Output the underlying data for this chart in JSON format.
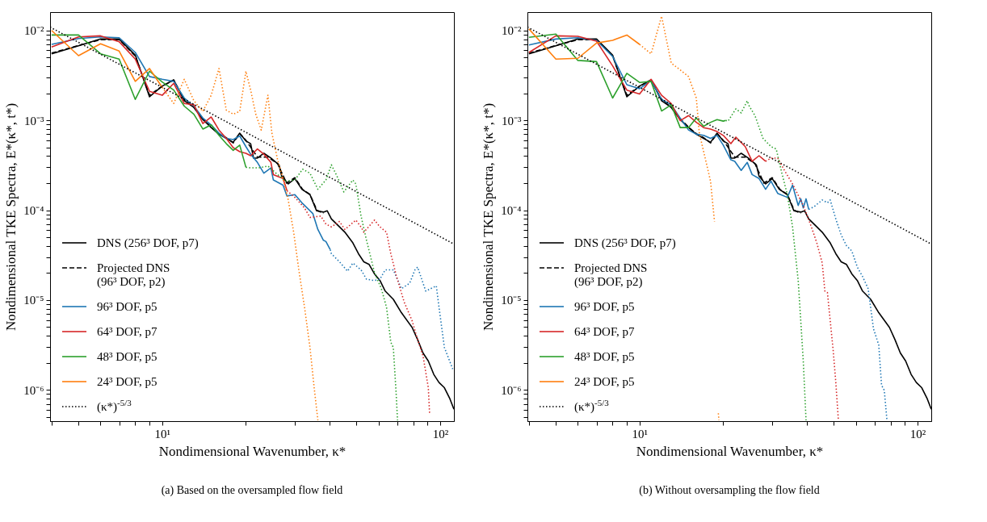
{
  "chart_data": [
    {
      "type": "line",
      "xlabel": "Nondimensional Wavenumber, κ*",
      "ylabel": "Nondimensional TKE Spectra, E*(κ*, t*)",
      "annotations": [
        "(a) Based on the oversampled flow field"
      ],
      "log": "xy",
      "legend": "bottom left",
      "xlim": [
        3.95,
        112
      ],
      "ylim": [
        4.5e-07,
        0.016
      ],
      "xticks": [
        {
          "value": 4,
          "label": null
        },
        {
          "value": 5,
          "label": null
        },
        {
          "value": 6,
          "label": null
        },
        {
          "value": 7,
          "label": null
        },
        {
          "value": 8,
          "label": null
        },
        {
          "value": 9,
          "label": null
        },
        {
          "value": 10,
          "label": "10¹"
        },
        {
          "value": 20,
          "label": null
        },
        {
          "value": 30,
          "label": null
        },
        {
          "value": 40,
          "label": null
        },
        {
          "value": 50,
          "label": null
        },
        {
          "value": 60,
          "label": null
        },
        {
          "value": 70,
          "label": null
        },
        {
          "value": 80,
          "label": null
        },
        {
          "value": 90,
          "label": null
        },
        {
          "value": 100,
          "label": "10²"
        }
      ],
      "yticks": [
        {
          "value": 5e-07,
          "label": null
        },
        {
          "value": 6e-07,
          "label": null
        },
        {
          "value": 7e-07,
          "label": null
        },
        {
          "value": 8e-07,
          "label": null
        },
        {
          "value": 9e-07,
          "label": null
        },
        {
          "value": 1e-06,
          "label": "10⁻⁶"
        },
        {
          "value": 2e-06,
          "label": null
        },
        {
          "value": 3e-06,
          "label": null
        },
        {
          "value": 4e-06,
          "label": null
        },
        {
          "value": 5e-06,
          "label": null
        },
        {
          "value": 6e-06,
          "label": null
        },
        {
          "value": 7e-06,
          "label": null
        },
        {
          "value": 8e-06,
          "label": null
        },
        {
          "value": 9e-06,
          "label": null
        },
        {
          "value": 1e-05,
          "label": "10⁻⁵"
        },
        {
          "value": 2e-05,
          "label": null
        },
        {
          "value": 3e-05,
          "label": null
        },
        {
          "value": 4e-05,
          "label": null
        },
        {
          "value": 5e-05,
          "label": null
        },
        {
          "value": 6e-05,
          "label": null
        },
        {
          "value": 7e-05,
          "label": null
        },
        {
          "value": 8e-05,
          "label": null
        },
        {
          "value": 9e-05,
          "label": null
        },
        {
          "value": 0.0001,
          "label": "10⁻⁴"
        },
        {
          "value": 0.0002,
          "label": null
        },
        {
          "value": 0.0003,
          "label": null
        },
        {
          "value": 0.0004,
          "label": null
        },
        {
          "value": 0.0005,
          "label": null
        },
        {
          "value": 0.0006,
          "label": null
        },
        {
          "value": 0.0007,
          "label": null
        },
        {
          "value": 0.0008,
          "label": null
        },
        {
          "value": 0.0009,
          "label": null
        },
        {
          "value": 0.001,
          "label": "10⁻³"
        },
        {
          "value": 0.002,
          "label": null
        },
        {
          "value": 0.003,
          "label": null
        },
        {
          "value": 0.004,
          "label": null
        },
        {
          "value": 0.005,
          "label": null
        },
        {
          "value": 0.006,
          "label": null
        },
        {
          "value": 0.007,
          "label": null
        },
        {
          "value": 0.008,
          "label": null
        },
        {
          "value": 0.009,
          "label": null
        },
        {
          "value": 0.01,
          "label": "10⁻²"
        }
      ],
      "series": [
        {
          "name": "DNS (256³ DOF, p7)",
          "color": "#000000",
          "line_style": "solid",
          "x": [
            4,
            5,
            6,
            7,
            8,
            9,
            10,
            11,
            12,
            13,
            14,
            15,
            16,
            17,
            18,
            19,
            20,
            20.8,
            21.3,
            22,
            23.2,
            24.6,
            26.3,
            26.9,
            28.4,
            30,
            31.8,
            34,
            35.9,
            38,
            39.2,
            40.6,
            43.4,
            45.4,
            48.5,
            50.8,
            53.1,
            55.5,
            58,
            60.7,
            63.4,
            67.8,
            72.5,
            79.2,
            82.9,
            86.7,
            90.6,
            94.8,
            99,
            103.5,
            108.3,
            112
          ],
          "values": [
            0.0055,
            0.00676,
            0.00803,
            0.00803,
            0.00531,
            0.00183,
            0.00241,
            0.00282,
            0.00165,
            0.00139,
            0.00102,
            0.00083,
            0.0007,
            0.00063,
            0.00057,
            0.00072,
            0.00059,
            0.00055,
            0.00038,
            0.00038,
            0.00043,
            0.00038,
            0.00032,
            0.00024,
            0.000196,
            0.000225,
            0.000171,
            0.000149,
            9.86e-05,
            9.53e-05,
            9.86e-05,
            8e-05,
            6.53e-05,
            5.69e-05,
            4.33e-05,
            3.28e-05,
            2.67e-05,
            2.49e-05,
            1.96e-05,
            1.65e-05,
            1.26e-05,
            1.02e-05,
            7.24e-06,
            4.97e-06,
            3.64e-06,
            2.58e-06,
            2.1e-06,
            1.49e-06,
            1.21e-06,
            1.06e-06,
            8e-07,
            6.1e-07
          ]
        },
        {
          "name": "Projected DNS (96³ DOF, p2)",
          "color": "#000000",
          "line_style": "dashed",
          "x": [
            4,
            5,
            6,
            7,
            8,
            9,
            10,
            11,
            12,
            13,
            14,
            15,
            16,
            17,
            18,
            19,
            20,
            22,
            24,
            26,
            28,
            30,
            32,
            34,
            36,
            38
          ],
          "values": [
            0.0056,
            0.0068,
            0.0079,
            0.0079,
            0.0052,
            0.0019,
            0.0024,
            0.0028,
            0.0017,
            0.0014,
            0.00104,
            0.00084,
            0.00071,
            0.00064,
            0.00056,
            0.00071,
            0.0006,
            0.00039,
            0.00039,
            0.00033,
            0.0002,
            0.00023,
            0.00017,
            0.00015,
            0.0001,
            9.2e-05
          ]
        },
        {
          "name": "96³ DOF, p5",
          "color": "#1f77b4",
          "line_style": "solid",
          "x": [
            4,
            5,
            6,
            7,
            8,
            9,
            10,
            11,
            12,
            13,
            14,
            15,
            16,
            17,
            18,
            19,
            20,
            20.8,
            22,
            23.2,
            24.6,
            25.1,
            27.2,
            28.1,
            30,
            31.8,
            34.8,
            36.3,
            38,
            38.8,
            40.2
          ],
          "values": [
            0.007,
            0.00813,
            0.00848,
            0.0083,
            0.00569,
            0.00307,
            0.00286,
            0.00271,
            0.00177,
            0.00144,
            0.00106,
            0.00089,
            0.00072,
            0.00063,
            0.00061,
            0.00067,
            0.00051,
            0.00042,
            0.00034,
            0.000258,
            0.000296,
            0.000217,
            0.00019,
            0.000144,
            0.000149,
            0.000121,
            9.2e-05,
            6.1e-05,
            4.63e-05,
            4.48e-05,
            3.64e-05
          ]
        },
        {
          "name": "64³ DOF, p7",
          "color": "#d62728",
          "line_style": "solid",
          "x": [
            4,
            5,
            6,
            7,
            8,
            9,
            10,
            11,
            12,
            13,
            14,
            15,
            16,
            17,
            18,
            19,
            20,
            20.8,
            22,
            23.2,
            24.6,
            25.1,
            27.2,
            28.1
          ],
          "values": [
            0.00653,
            0.00848,
            0.00871,
            0.0075,
            0.0048,
            0.0021,
            0.0019,
            0.00258,
            0.00154,
            0.00149,
            0.00092,
            0.00109,
            0.00078,
            0.00063,
            0.000497,
            0.000448,
            0.00043,
            0.000404,
            0.00048,
            0.00042,
            0.00034,
            0.000249,
            0.000225,
            0.000165
          ]
        },
        {
          "name": "48³ DOF, p5",
          "color": "#2ca02c",
          "line_style": "solid",
          "x": [
            4,
            5,
            6,
            7,
            8,
            9,
            10,
            11,
            12,
            13,
            14,
            15,
            16,
            17,
            18,
            19,
            20
          ],
          "values": [
            0.0089,
            0.0089,
            0.0055,
            0.0048,
            0.00171,
            0.00352,
            0.00267,
            0.00217,
            0.00144,
            0.00117,
            0.0008,
            0.00089,
            0.00068,
            0.00055,
            0.000463,
            0.00053,
            0.0003
          ]
        },
        {
          "name": "24³ DOF, p5",
          "color": "#ff7f0e",
          "line_style": "solid",
          "x": [
            4,
            5,
            6,
            7,
            8,
            9,
            10
          ],
          "values": [
            0.01,
            0.00524,
            0.0071,
            0.00589,
            0.00271,
            0.00377,
            0.00233
          ]
        },
        {
          "name": "(κ*)$^{-5/3}$",
          "color": "#000000",
          "line_style": "dotted",
          "x": [
            3.95,
            112
          ],
          "values": [
            0.0109,
            4.2e-05
          ]
        },
        {
          "color": "#1f77b4",
          "line_style": "dotted",
          "x": [
            40.2,
            40.6,
            43.4,
            46.4,
            48.5,
            51.9,
            54.3,
            58,
            60.7,
            63.4,
            67.8,
            72.5,
            77.6,
            81.1,
            82.9,
            88.7,
            96.8,
            99,
            103.5,
            110.9
          ],
          "values": [
            3.64e-05,
            3.28e-05,
            2.67e-05,
            2.1e-05,
            2.58e-05,
            2.17e-05,
            1.71e-05,
            1.65e-05,
            1.71e-05,
            2.17e-05,
            2.17e-05,
            1.34e-05,
            1.54e-05,
            2.17e-05,
            2.33e-05,
            1.26e-05,
            1.44e-05,
            8.3e-06,
            2.97e-06,
            1.71e-06
          ]
        },
        {
          "color": "#d62728",
          "line_style": "dotted",
          "x": [
            28.1,
            30,
            32.5,
            34,
            37.2,
            38.8,
            40.6,
            43.4,
            45.4,
            49.7,
            51.9,
            53.1,
            58,
            60.7,
            64.1,
            66.4,
            69.4,
            74.2,
            79.2,
            82.9,
            86.7,
            90.6,
            91.6
          ],
          "values": [
            0.000165,
            0.000139,
            0.000106,
            8.3e-05,
            8.6e-05,
            7e-05,
            6.53e-05,
            7.5e-05,
            6.1e-05,
            7.76e-05,
            6.5e-05,
            5.69e-05,
            7.76e-05,
            6.53e-05,
            5.69e-05,
            3.28e-05,
            1.9e-05,
            9.5e-06,
            5.9e-06,
            3.64e-06,
            2.4e-06,
            1.06e-06,
            5.3e-07
          ]
        },
        {
          "color": "#2ca02c",
          "line_style": "dotted",
          "x": [
            20,
            20.8,
            22.2,
            24,
            26,
            27.8,
            30,
            32,
            34,
            36.3,
            38.8,
            40.6,
            42.5,
            45,
            48.5,
            49.7,
            51.9,
            54.3,
            58,
            61.4,
            64.1,
            66.4,
            67.8,
            69.4,
            70.2
          ],
          "values": [
            0.0003,
            0.000296,
            0.000296,
            0.00031,
            0.000249,
            0.00021,
            0.000217,
            0.000286,
            0.000258,
            0.000171,
            0.000217,
            0.00032,
            0.00024,
            0.00016,
            0.000217,
            0.000196,
            8.6e-05,
            4.63e-05,
            2.03e-05,
            1.34e-05,
            8.3e-06,
            3.4e-06,
            2.97e-06,
            9.2e-07,
            4.6e-07
          ]
        },
        {
          "color": "#ff7f0e",
          "line_style": "dotted",
          "x": [
            10,
            11,
            12,
            13,
            14,
            15,
            16,
            17,
            18,
            19,
            20,
            20.8,
            21.7,
            22.7,
            24,
            24.8,
            26,
            27.2,
            28.4,
            29.7,
            31,
            32.5,
            34,
            35.2,
            36.3
          ],
          "values": [
            0.00233,
            0.00154,
            0.00286,
            0.00165,
            0.00126,
            0.0019,
            0.00377,
            0.0013,
            0.00117,
            0.00126,
            0.00352,
            0.00217,
            0.00117,
            0.00078,
            0.0019,
            0.00072,
            0.000364,
            0.000225,
            0.00013,
            5.69e-05,
            2.17e-05,
            8.3e-06,
            2.97e-06,
            1.06e-06,
            4.6e-07
          ]
        }
      ]
    },
    {
      "type": "line",
      "xlabel": "Nondimensional Wavenumber, κ*",
      "ylabel": "Nondimensional TKE Spectra, E*(κ*, t*)",
      "annotations": [
        "(b) Without oversampling the flow field"
      ],
      "log": "xy",
      "legend": "bottom left",
      "xlim": [
        3.95,
        112
      ],
      "ylim": [
        4.5e-07,
        0.016
      ],
      "xticks": [
        {
          "value": 4,
          "label": null
        },
        {
          "value": 5,
          "label": null
        },
        {
          "value": 6,
          "label": null
        },
        {
          "value": 7,
          "label": null
        },
        {
          "value": 8,
          "label": null
        },
        {
          "value": 9,
          "label": null
        },
        {
          "value": 10,
          "label": "10¹"
        },
        {
          "value": 20,
          "label": null
        },
        {
          "value": 30,
          "label": null
        },
        {
          "value": 40,
          "label": null
        },
        {
          "value": 50,
          "label": null
        },
        {
          "value": 60,
          "label": null
        },
        {
          "value": 70,
          "label": null
        },
        {
          "value": 80,
          "label": null
        },
        {
          "value": 90,
          "label": null
        },
        {
          "value": 100,
          "label": "10²"
        }
      ],
      "yticks": [
        {
          "value": 5e-07,
          "label": null
        },
        {
          "value": 6e-07,
          "label": null
        },
        {
          "value": 7e-07,
          "label": null
        },
        {
          "value": 8e-07,
          "label": null
        },
        {
          "value": 9e-07,
          "label": null
        },
        {
          "value": 1e-06,
          "label": "10⁻⁶"
        },
        {
          "value": 2e-06,
          "label": null
        },
        {
          "value": 3e-06,
          "label": null
        },
        {
          "value": 4e-06,
          "label": null
        },
        {
          "value": 5e-06,
          "label": null
        },
        {
          "value": 6e-06,
          "label": null
        },
        {
          "value": 7e-06,
          "label": null
        },
        {
          "value": 8e-06,
          "label": null
        },
        {
          "value": 9e-06,
          "label": null
        },
        {
          "value": 1e-05,
          "label": "10⁻⁵"
        },
        {
          "value": 2e-05,
          "label": null
        },
        {
          "value": 3e-05,
          "label": null
        },
        {
          "value": 4e-05,
          "label": null
        },
        {
          "value": 5e-05,
          "label": null
        },
        {
          "value": 6e-05,
          "label": null
        },
        {
          "value": 7e-05,
          "label": null
        },
        {
          "value": 8e-05,
          "label": null
        },
        {
          "value": 9e-05,
          "label": null
        },
        {
          "value": 0.0001,
          "label": "10⁻⁴"
        },
        {
          "value": 0.0002,
          "label": null
        },
        {
          "value": 0.0003,
          "label": null
        },
        {
          "value": 0.0004,
          "label": null
        },
        {
          "value": 0.0005,
          "label": null
        },
        {
          "value": 0.0006,
          "label": null
        },
        {
          "value": 0.0007,
          "label": null
        },
        {
          "value": 0.0008,
          "label": null
        },
        {
          "value": 0.0009,
          "label": null
        },
        {
          "value": 0.001,
          "label": "10⁻³"
        },
        {
          "value": 0.002,
          "label": null
        },
        {
          "value": 0.003,
          "label": null
        },
        {
          "value": 0.004,
          "label": null
        },
        {
          "value": 0.005,
          "label": null
        },
        {
          "value": 0.006,
          "label": null
        },
        {
          "value": 0.007,
          "label": null
        },
        {
          "value": 0.008,
          "label": null
        },
        {
          "value": 0.009,
          "label": null
        },
        {
          "value": 0.01,
          "label": "10⁻²"
        }
      ],
      "series": [
        {
          "name": "DNS (256³ DOF, p7)",
          "color": "#000000",
          "line_style": "solid",
          "x": [
            4,
            5,
            6,
            7,
            8,
            9,
            10,
            11,
            12,
            13,
            14,
            15,
            16,
            17,
            18,
            19,
            20,
            20.8,
            21.3,
            22,
            23.2,
            24.6,
            26.3,
            26.9,
            28.4,
            30,
            31.8,
            34,
            35.9,
            38,
            39.2,
            40.6,
            43.4,
            45.4,
            48.5,
            50.8,
            53.1,
            55.5,
            58,
            60.7,
            63.4,
            67.8,
            72.5,
            79.2,
            82.9,
            86.7,
            90.6,
            94.8,
            99,
            103.5,
            108.3,
            112
          ],
          "values": [
            0.0055,
            0.00676,
            0.00803,
            0.00803,
            0.00531,
            0.00183,
            0.00241,
            0.00282,
            0.00165,
            0.00139,
            0.00102,
            0.00083,
            0.0007,
            0.00063,
            0.00057,
            0.00072,
            0.00059,
            0.00055,
            0.00038,
            0.00038,
            0.00043,
            0.00038,
            0.00032,
            0.00024,
            0.000196,
            0.000225,
            0.000171,
            0.000149,
            9.86e-05,
            9.53e-05,
            9.86e-05,
            8e-05,
            6.53e-05,
            5.69e-05,
            4.33e-05,
            3.28e-05,
            2.67e-05,
            2.49e-05,
            1.96e-05,
            1.65e-05,
            1.26e-05,
            1.02e-05,
            7.24e-06,
            4.97e-06,
            3.64e-06,
            2.58e-06,
            2.1e-06,
            1.49e-06,
            1.21e-06,
            1.06e-06,
            8e-07,
            6.1e-07
          ]
        },
        {
          "name": "Projected DNS (96³ DOF, p2)",
          "color": "#000000",
          "line_style": "dashed",
          "x": [
            4,
            5,
            6,
            7,
            8,
            9,
            10,
            11,
            12,
            13,
            14,
            15,
            16,
            17,
            18,
            19,
            20,
            22,
            24,
            26,
            28,
            30,
            32,
            34,
            36,
            38
          ],
          "values": [
            0.0056,
            0.0068,
            0.0079,
            0.0079,
            0.0052,
            0.0019,
            0.0024,
            0.0028,
            0.0017,
            0.0014,
            0.00104,
            0.00084,
            0.00071,
            0.00064,
            0.00056,
            0.00071,
            0.0006,
            0.00039,
            0.00039,
            0.00033,
            0.0002,
            0.00023,
            0.00017,
            0.00015,
            0.0001,
            9.2e-05
          ]
        },
        {
          "name": "96³ DOF, p5",
          "color": "#1f77b4",
          "line_style": "solid",
          "x": [
            4,
            5,
            6,
            7,
            8,
            9,
            10,
            11,
            12,
            13,
            14,
            15,
            16,
            17,
            18,
            19,
            20,
            21.3,
            22,
            23.2,
            24.4,
            25.4,
            26.9,
            28.4,
            29.7,
            31.4,
            34,
            35.5,
            37.2,
            38,
            38.8,
            39.7,
            40.6
          ],
          "values": [
            0.0069,
            0.00803,
            0.0083,
            0.00776,
            0.00513,
            0.00249,
            0.00225,
            0.00277,
            0.00171,
            0.00149,
            0.00106,
            0.00078,
            0.0007,
            0.00068,
            0.00063,
            0.00068,
            0.00053,
            0.000364,
            0.00035,
            0.000277,
            0.00034,
            0.000249,
            0.000225,
            0.000171,
            0.00021,
            0.000154,
            0.000139,
            0.00019,
            0.000113,
            0.000134,
            0.000106,
            0.000134,
            0.000102
          ]
        },
        {
          "name": "64³ DOF, p7",
          "color": "#d62728",
          "line_style": "solid",
          "x": [
            4,
            5,
            6,
            7,
            8,
            9,
            10,
            11,
            12,
            13,
            14,
            15,
            16,
            17,
            18,
            19,
            20,
            21.3,
            22.2,
            24,
            25.4,
            26.9,
            28.4
          ],
          "values": [
            0.00569,
            0.00871,
            0.0086,
            0.0076,
            0.00404,
            0.00217,
            0.00196,
            0.00286,
            0.0019,
            0.00154,
            0.00099,
            0.00113,
            0.00095,
            0.00083,
            0.0008,
            0.00075,
            0.00068,
            0.00055,
            0.00065,
            0.00051,
            0.00035,
            0.000404,
            0.00035
          ]
        },
        {
          "name": "48³ DOF, p5",
          "color": "#2ca02c",
          "line_style": "solid",
          "x": [
            4,
            5,
            6,
            7,
            8,
            9,
            10,
            11,
            12,
            13,
            14,
            15,
            16,
            17,
            18,
            19,
            20,
            20.4
          ],
          "values": [
            0.0084,
            0.0091,
            0.00464,
            0.0045,
            0.00177,
            0.00333,
            0.00264,
            0.00271,
            0.00127,
            0.00149,
            0.00083,
            0.00083,
            0.00106,
            0.00086,
            0.00095,
            0.00102,
            0.00098,
            0.001
          ]
        },
        {
          "name": "24³ DOF, p5",
          "color": "#ff7f0e",
          "line_style": "solid",
          "x": [
            4,
            5,
            6,
            7,
            8,
            9,
            10
          ],
          "values": [
            0.0104,
            0.0048,
            0.0049,
            0.00724,
            0.00776,
            0.0089,
            0.007
          ]
        },
        {
          "name": "(κ*)$^{-5/3}$",
          "color": "#000000",
          "line_style": "dotted",
          "x": [
            3.95,
            112
          ],
          "values": [
            0.0109,
            4.2e-05
          ]
        },
        {
          "color": "#1f77b4",
          "line_style": "dotted",
          "x": [
            40.6,
            42.5,
            45.4,
            47.4,
            48.5,
            50.8,
            53.1,
            55.5,
            58,
            60.7,
            63.4,
            66.4,
            69.4,
            72.5,
            74.2,
            75.9,
            77.6
          ],
          "values": [
            0.000102,
            0.00011,
            0.00013,
            0.000121,
            0.00013,
            8e-05,
            5.31e-05,
            4.03e-05,
            3.52e-05,
            2.33e-05,
            1.83e-05,
            1.34e-05,
            4.8e-06,
            3.17e-06,
            1.13e-06,
            9.9e-07,
            4.6e-07
          ]
        },
        {
          "color": "#d62728",
          "line_style": "dotted",
          "x": [
            28.4,
            29.7,
            31.4,
            33.2,
            35.5,
            38.8,
            41.5,
            43.4,
            45.4,
            46.4,
            47.4,
            48.5,
            49.7,
            50.8,
            51.9
          ],
          "values": [
            0.00035,
            0.00038,
            0.00038,
            0.000277,
            0.000196,
            0.000113,
            6.53e-05,
            4.33e-05,
            2.58e-05,
            1.26e-05,
            1.21e-05,
            5.9e-06,
            2.77e-06,
            1.21e-06,
            4.6e-07
          ]
        },
        {
          "color": "#2ca02c",
          "line_style": "dotted",
          "x": [
            20.4,
            20.8,
            22.2,
            23.2,
            24.4,
            24.8,
            26,
            27.8,
            29.7,
            31,
            32.5,
            34,
            35.5,
            37.2,
            38,
            38.8,
            39.7
          ],
          "values": [
            0.001,
            0.00098,
            0.00134,
            0.00121,
            0.00165,
            0.00144,
            0.00113,
            0.00063,
            0.00051,
            0.00048,
            0.000258,
            0.000149,
            6.53e-05,
            1.65e-05,
            5.9e-06,
            2.1e-06,
            4.6e-07
          ]
        },
        {
          "color": "#ff7f0e",
          "line_style": "dotted",
          "x": [
            10,
            11,
            12,
            13,
            14,
            15,
            16,
            16.4,
            17,
            18,
            18.6,
            19,
            19.2,
            19.3
          ],
          "values": [
            0.007,
            0.0055,
            0.0144,
            0.00433,
            0.00364,
            0.00307,
            0.00177,
            0.00072,
            0.00045,
            0.00021,
            7.5e-05,
            null,
            5.5e-07,
            4.6e-07
          ]
        }
      ]
    }
  ]
}
